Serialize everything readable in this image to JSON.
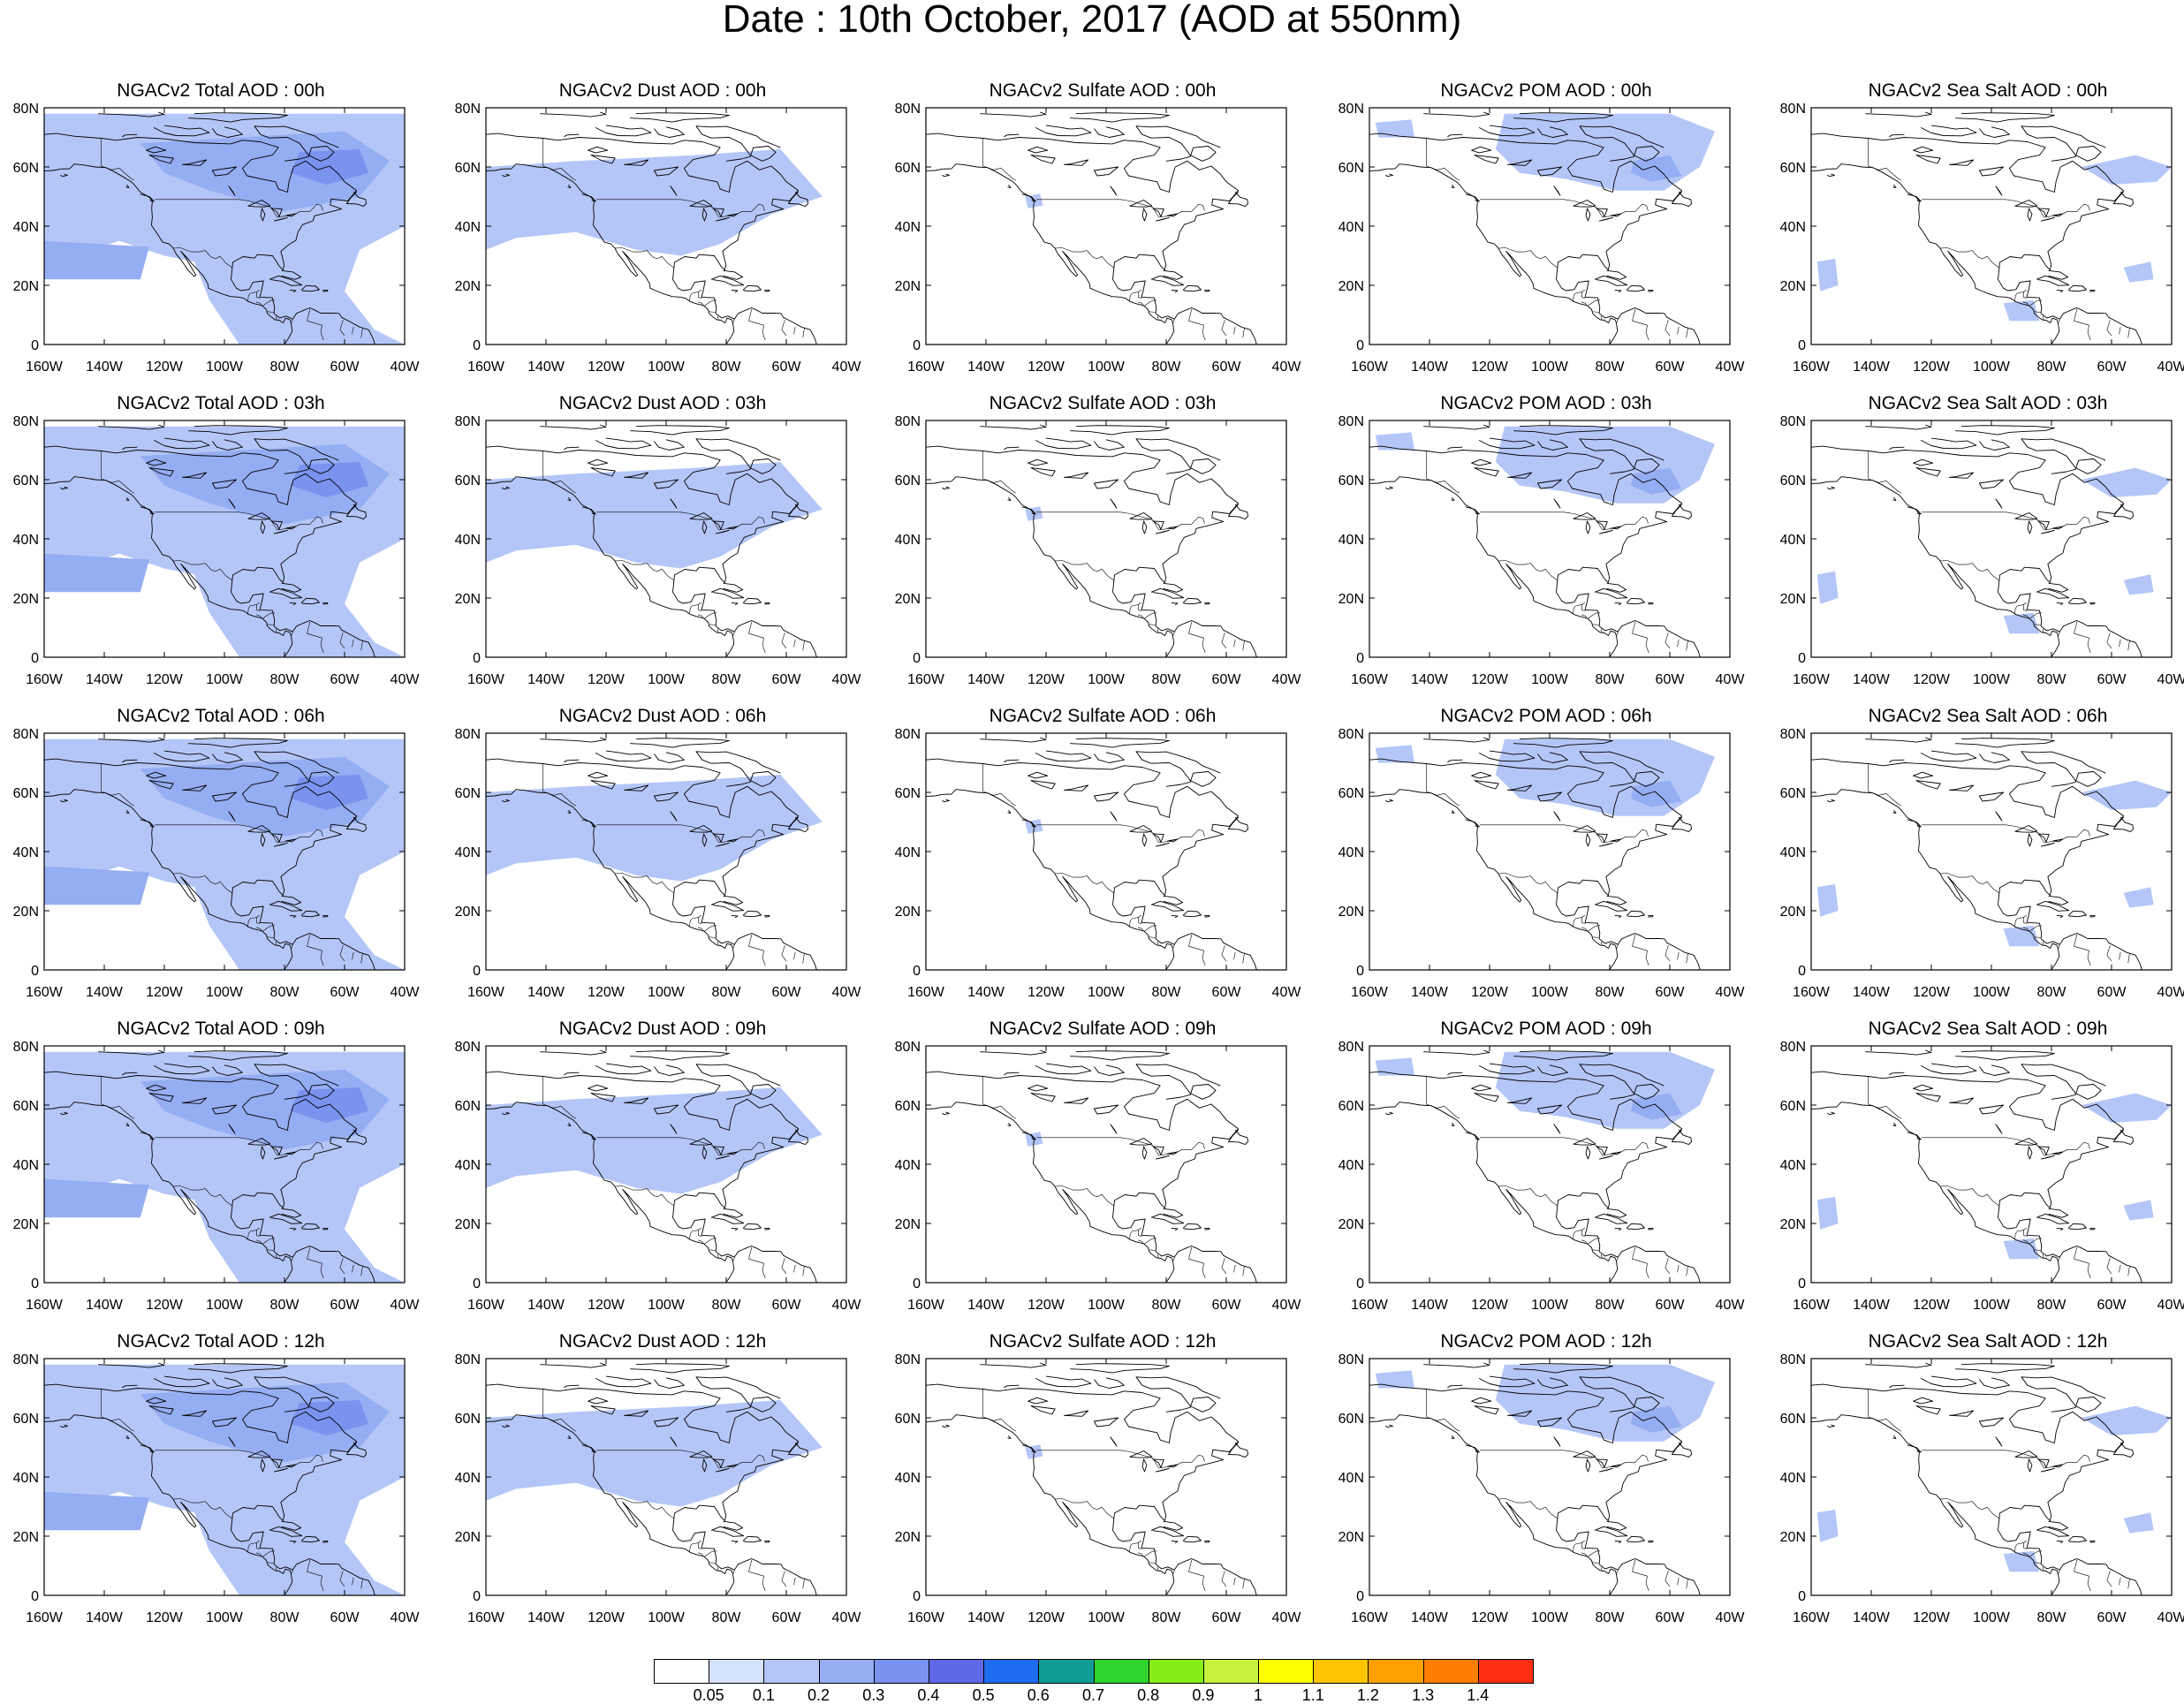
{
  "figure": {
    "title": "Date : 10th October, 2017 (AOD at 550nm)"
  },
  "axes": {
    "lat_labels": [
      "80N",
      "60N",
      "40N",
      "20N",
      "0"
    ],
    "lon_labels": [
      "160W",
      "140W",
      "120W",
      "100W",
      "80W",
      "60W",
      "40W"
    ],
    "lat_range": [
      0,
      80
    ],
    "lon_range": [
      -160,
      -40
    ]
  },
  "rows": [
    [
      "NGACv2 Total AOD : 00h",
      "NGACv2 Dust AOD : 00h",
      "NGACv2 Sulfate AOD : 00h",
      "NGACv2 POM AOD : 00h",
      "NGACv2 Sea Salt AOD : 00h"
    ],
    [
      "NGACv2 Total AOD : 03h",
      "NGACv2 Dust AOD : 03h",
      "NGACv2 Sulfate AOD : 03h",
      "NGACv2 POM AOD : 03h",
      "NGACv2 Sea Salt AOD : 03h"
    ],
    [
      "NGACv2 Total AOD : 06h",
      "NGACv2 Dust AOD : 06h",
      "NGACv2 Sulfate AOD : 06h",
      "NGACv2 POM AOD : 06h",
      "NGACv2 Sea Salt AOD : 06h"
    ],
    [
      "NGACv2 Total AOD : 09h",
      "NGACv2 Dust AOD : 09h",
      "NGACv2 Sulfate AOD : 09h",
      "NGACv2 POM AOD : 09h",
      "NGACv2 Sea Salt  AOD : 09h"
    ],
    [
      "NGACv2 Total AOD  : 12h",
      "NGACv2 Dust AOD : 12h",
      "NGACv2 Sulfate AOD : 12h",
      "NGACv2 POM  AOD : 12h",
      "NGACv2 Sea Salt  AOD : 12h"
    ]
  ],
  "colorbar": {
    "labels": [
      "0.05",
      "0.1",
      "0.2",
      "0.3",
      "0.4",
      "0.5",
      "0.6",
      "0.7",
      "0.8",
      "0.9",
      "1",
      "1.1",
      "1.2",
      "1.3",
      "1.4"
    ],
    "colors": [
      "#ffffff",
      "#d6e1fb",
      "#b4c6f7",
      "#95adf2",
      "#7a93ef",
      "#5f69e8",
      "#1e6cf0",
      "#119b96",
      "#2fd42c",
      "#86ee16",
      "#c6f23c",
      "#ffff00",
      "#ffc400",
      "#ffa000",
      "#ff7d00",
      "#ff2e12"
    ]
  },
  "aod_shading": {
    "total": [
      {
        "level": 0.1,
        "regions": [
          [
            [
              -160,
              78
            ],
            [
              -40,
              78
            ],
            [
              -40,
              40
            ],
            [
              -55,
              32
            ],
            [
              -60,
              18
            ],
            [
              -50,
              5
            ],
            [
              -40,
              0
            ],
            [
              -95,
              0
            ],
            [
              -105,
              15
            ],
            [
              -110,
              28
            ],
            [
              -120,
              30
            ],
            [
              -135,
              35
            ],
            [
              -150,
              30
            ],
            [
              -160,
              28
            ]
          ]
        ]
      },
      {
        "level": 0.2,
        "regions": [
          [
            [
              -128,
              68
            ],
            [
              -60,
              72
            ],
            [
              -45,
              62
            ],
            [
              -55,
              50
            ],
            [
              -80,
              45
            ],
            [
              -105,
              52
            ],
            [
              -120,
              58
            ]
          ],
          [
            [
              -160,
              35
            ],
            [
              -125,
              33
            ],
            [
              -128,
              22
            ],
            [
              -160,
              22
            ]
          ]
        ]
      },
      {
        "level": 0.3,
        "regions": [
          [
            [
              -75,
              65
            ],
            [
              -55,
              66
            ],
            [
              -52,
              58
            ],
            [
              -66,
              54
            ],
            [
              -78,
              58
            ]
          ]
        ]
      }
    ],
    "dust": [
      {
        "level": 0.1,
        "regions": [
          [
            [
              -160,
              60
            ],
            [
              -130,
              62
            ],
            [
              -90,
              64
            ],
            [
              -62,
              66
            ],
            [
              -48,
              50
            ],
            [
              -65,
              44
            ],
            [
              -82,
              34
            ],
            [
              -95,
              30
            ],
            [
              -110,
              32
            ],
            [
              -130,
              38
            ],
            [
              -150,
              36
            ],
            [
              -160,
              32
            ]
          ]
        ]
      }
    ],
    "sulfate": [
      {
        "level": 0.1,
        "regions": [
          [
            [
              -127,
              50
            ],
            [
              -122,
              51
            ],
            [
              -121,
              47
            ],
            [
              -126,
              46
            ]
          ]
        ]
      }
    ],
    "pom": [
      {
        "level": 0.1,
        "regions": [
          [
            [
              -115,
              78
            ],
            [
              -60,
              78
            ],
            [
              -45,
              72
            ],
            [
              -50,
              60
            ],
            [
              -62,
              52
            ],
            [
              -78,
              52
            ],
            [
              -95,
              56
            ],
            [
              -110,
              58
            ],
            [
              -118,
              66
            ]
          ],
          [
            [
              -158,
              75
            ],
            [
              -146,
              76
            ],
            [
              -145,
              70
            ],
            [
              -157,
              70
            ]
          ]
        ]
      },
      {
        "level": 0.2,
        "regions": [
          [
            [
              -72,
              62
            ],
            [
              -60,
              64
            ],
            [
              -56,
              57
            ],
            [
              -66,
              55
            ],
            [
              -73,
              58
            ]
          ]
        ]
      }
    ],
    "seasalt": [
      {
        "level": 0.1,
        "regions": [
          [
            [
              -70,
              60
            ],
            [
              -52,
              64
            ],
            [
              -40,
              60
            ],
            [
              -45,
              55
            ],
            [
              -60,
              54
            ]
          ],
          [
            [
              -158,
              28
            ],
            [
              -152,
              29
            ],
            [
              -151,
              20
            ],
            [
              -157,
              18
            ]
          ],
          [
            [
              -96,
              14
            ],
            [
              -86,
              15
            ],
            [
              -84,
              8
            ],
            [
              -94,
              8
            ]
          ],
          [
            [
              -56,
              26
            ],
            [
              -47,
              28
            ],
            [
              -46,
              22
            ],
            [
              -54,
              21
            ]
          ]
        ]
      }
    ]
  }
}
